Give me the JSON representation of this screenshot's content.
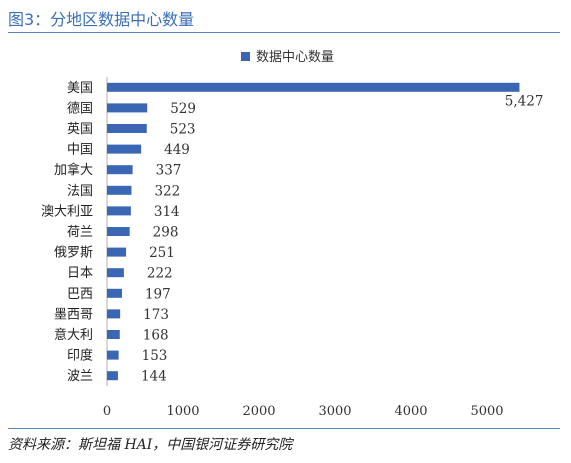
{
  "figure": {
    "title": "图3：分地区数据中心数量",
    "source": "资料来源：斯坦福 HAI，中国银河证券研究院"
  },
  "colors": {
    "bar": "#3A66B3",
    "title": "#3B6FB6",
    "rule": "#5B82C4",
    "axis": "#B0B0B0"
  },
  "chart_data": {
    "type": "bar",
    "orientation": "horizontal",
    "title": "",
    "xlabel": "",
    "ylabel": "",
    "categories": [
      "美国",
      "德国",
      "英国",
      "中国",
      "加拿大",
      "法国",
      "澳大利亚",
      "荷兰",
      "俄罗斯",
      "日本",
      "巴西",
      "墨西哥",
      "意大利",
      "印度",
      "波兰"
    ],
    "series": [
      {
        "name": "数据中心数量",
        "values": [
          5427,
          529,
          523,
          449,
          337,
          322,
          314,
          298,
          251,
          222,
          197,
          173,
          168,
          153,
          144
        ]
      }
    ],
    "value_labels": [
      "5,427",
      "529",
      "523",
      "449",
      "337",
      "322",
      "314",
      "298",
      "251",
      "222",
      "197",
      "173",
      "168",
      "153",
      "144"
    ],
    "xlim": [
      0,
      5500
    ],
    "xticks": [
      0,
      1000,
      2000,
      3000,
      4000,
      5000
    ],
    "grid": false,
    "legend": "top-center"
  }
}
